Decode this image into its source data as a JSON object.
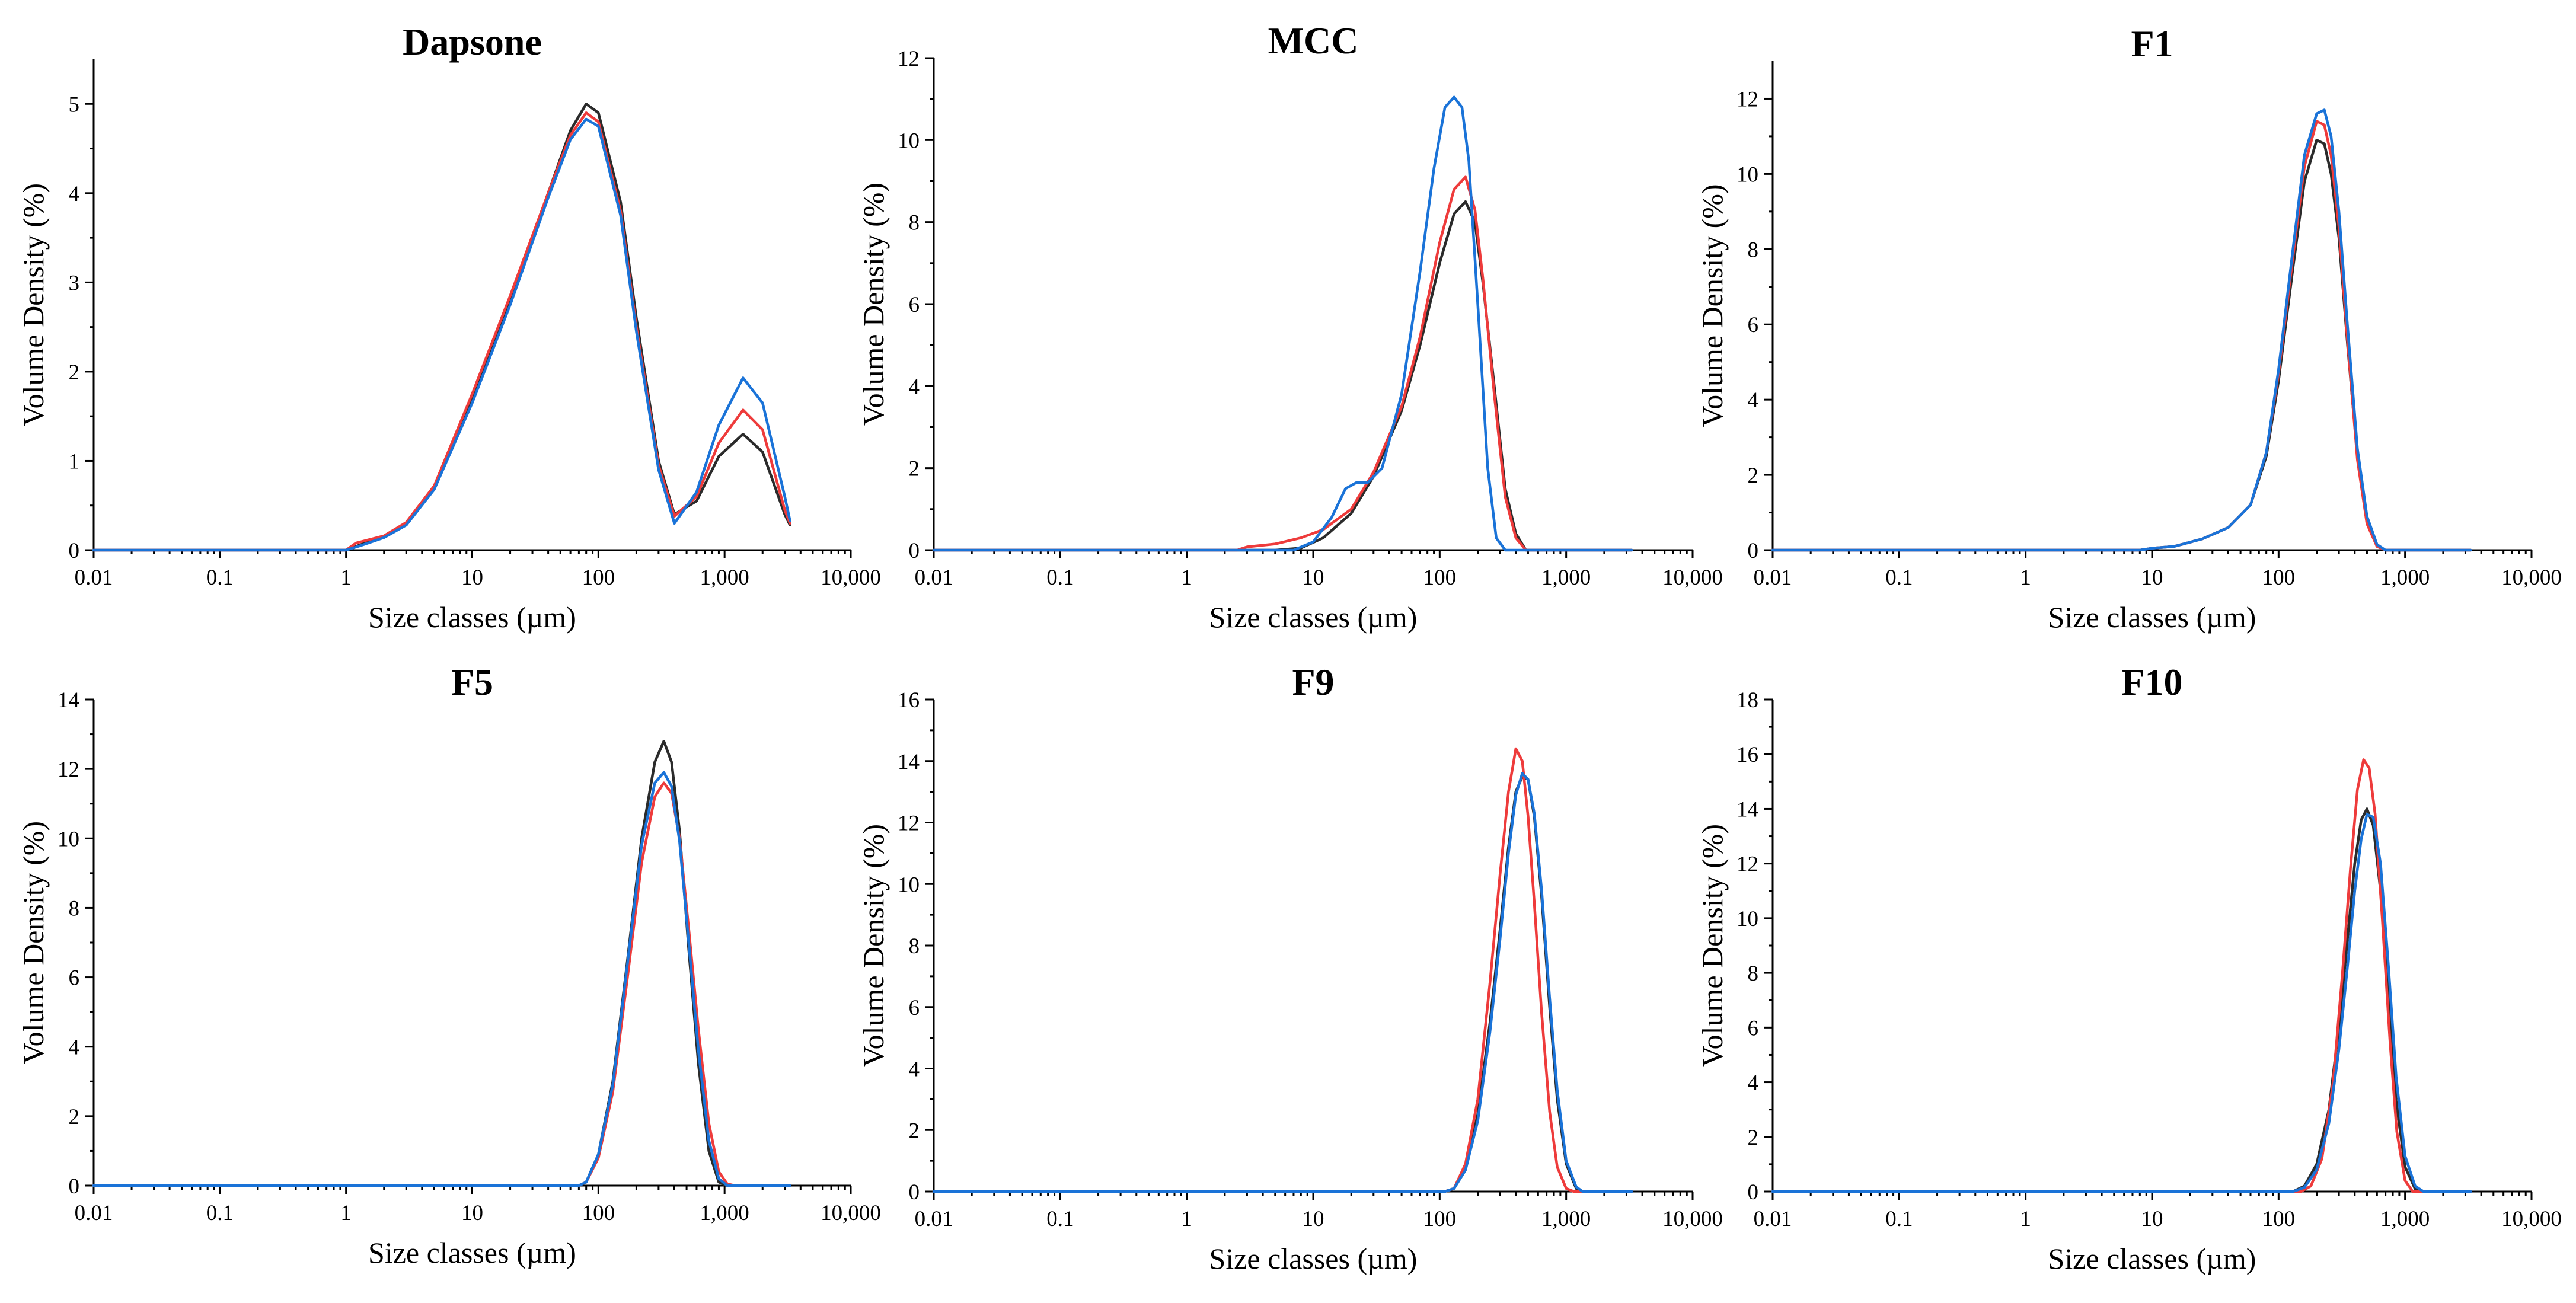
{
  "colors": {
    "black": "#2b2b2b",
    "red": "#ee3b3b",
    "blue": "#1a73d8"
  },
  "axis": {
    "xlabel": "Size classes (µm)",
    "ylabel": "Volume Density (%)",
    "xscale": "log",
    "xlim": [
      0.01,
      10000
    ],
    "xticks": [
      0.01,
      0.1,
      1,
      10,
      100,
      1000,
      10000
    ],
    "xtick_labels": [
      "0.01",
      "0.1",
      "1",
      "10",
      "100",
      "1,000",
      "10,000"
    ]
  },
  "chart_data": [
    {
      "type": "line",
      "title": "Dapsone",
      "ylim": [
        0,
        5.5
      ],
      "yticks": [
        0,
        1,
        2,
        3,
        4,
        5
      ],
      "xlabel": "Size classes (µm)",
      "ylabel": "Volume Density (%)",
      "series": [
        {
          "name": "black",
          "color": "#2b2b2b",
          "x": [
            0.01,
            1,
            1.3,
            2,
            3,
            5,
            10,
            20,
            40,
            60,
            80,
            100,
            150,
            200,
            300,
            400,
            600,
            900,
            1400,
            2000,
            3000,
            3300
          ],
          "y": [
            0,
            0,
            0.06,
            0.15,
            0.3,
            0.7,
            1.7,
            2.8,
            4.0,
            4.7,
            5.0,
            4.9,
            3.9,
            2.6,
            1.0,
            0.4,
            0.55,
            1.05,
            1.3,
            1.1,
            0.4,
            0.28
          ]
        },
        {
          "name": "red",
          "color": "#ee3b3b",
          "x": [
            0.01,
            1,
            1.2,
            2,
            3,
            5,
            10,
            20,
            40,
            60,
            80,
            100,
            150,
            200,
            300,
            400,
            600,
            900,
            1400,
            2000,
            3000,
            3300
          ],
          "y": [
            0,
            0,
            0.08,
            0.16,
            0.31,
            0.72,
            1.75,
            2.85,
            4.0,
            4.65,
            4.9,
            4.8,
            3.8,
            2.5,
            0.95,
            0.38,
            0.6,
            1.2,
            1.57,
            1.35,
            0.45,
            0.3
          ]
        },
        {
          "name": "blue",
          "color": "#1a73d8",
          "x": [
            0.01,
            1,
            1.3,
            2,
            3,
            5,
            10,
            20,
            40,
            60,
            80,
            100,
            150,
            200,
            300,
            400,
            600,
            900,
            1400,
            2000,
            3000,
            3300
          ],
          "y": [
            0,
            0,
            0.05,
            0.14,
            0.28,
            0.68,
            1.65,
            2.75,
            3.95,
            4.6,
            4.83,
            4.75,
            3.75,
            2.45,
            0.9,
            0.3,
            0.65,
            1.4,
            1.93,
            1.65,
            0.6,
            0.33
          ]
        }
      ]
    },
    {
      "type": "line",
      "title": "MCC",
      "ylim": [
        0,
        12
      ],
      "yticks": [
        0,
        2,
        4,
        6,
        8,
        10,
        12
      ],
      "xlabel": "Size classes (µm)",
      "ylabel": "Volume Density (%)",
      "series": [
        {
          "name": "black",
          "color": "#2b2b2b",
          "x": [
            0.01,
            5,
            8,
            12,
            20,
            30,
            50,
            70,
            100,
            130,
            160,
            190,
            220,
            270,
            330,
            400,
            480,
            3300
          ],
          "y": [
            0,
            0,
            0.05,
            0.3,
            0.9,
            1.8,
            3.4,
            5.0,
            7.0,
            8.2,
            8.5,
            8.0,
            6.5,
            4.0,
            1.5,
            0.4,
            0,
            0
          ]
        },
        {
          "name": "red",
          "color": "#ee3b3b",
          "x": [
            0.01,
            2.5,
            3,
            5,
            8,
            12,
            20,
            30,
            50,
            70,
            100,
            130,
            160,
            190,
            220,
            270,
            330,
            400,
            480,
            3300
          ],
          "y": [
            0,
            0,
            0.08,
            0.15,
            0.3,
            0.5,
            1.0,
            1.9,
            3.5,
            5.2,
            7.5,
            8.8,
            9.1,
            8.3,
            6.6,
            3.8,
            1.3,
            0.3,
            0,
            0
          ]
        },
        {
          "name": "blue",
          "color": "#1a73d8",
          "x": [
            0.01,
            7,
            10,
            14,
            18,
            22,
            27,
            35,
            50,
            70,
            90,
            110,
            130,
            150,
            170,
            200,
            240,
            280,
            330,
            3300
          ],
          "y": [
            0,
            0,
            0.2,
            0.8,
            1.5,
            1.65,
            1.65,
            2.0,
            3.8,
            6.8,
            9.3,
            10.8,
            11.05,
            10.8,
            9.5,
            6.0,
            2.0,
            0.3,
            0,
            0
          ]
        }
      ]
    },
    {
      "type": "line",
      "title": "F1",
      "ylim": [
        0,
        13
      ],
      "yticks": [
        0,
        2,
        4,
        6,
        8,
        10,
        12
      ],
      "xlabel": "Size classes (µm)",
      "ylabel": "Volume Density (%)",
      "series": [
        {
          "name": "black",
          "color": "#2b2b2b",
          "x": [
            0.01,
            8,
            10,
            15,
            25,
            40,
            60,
            80,
            100,
            130,
            160,
            200,
            230,
            260,
            300,
            350,
            420,
            500,
            600,
            700,
            3300
          ],
          "y": [
            0,
            0,
            0.05,
            0.1,
            0.3,
            0.6,
            1.2,
            2.5,
            4.5,
            7.5,
            9.8,
            10.9,
            10.8,
            10.0,
            8.3,
            5.5,
            2.5,
            0.8,
            0.1,
            0,
            0
          ]
        },
        {
          "name": "red",
          "color": "#ee3b3b",
          "x": [
            0.01,
            8,
            10,
            15,
            25,
            40,
            60,
            80,
            100,
            130,
            160,
            200,
            230,
            260,
            300,
            350,
            420,
            500,
            600,
            700,
            3300
          ],
          "y": [
            0,
            0,
            0.05,
            0.1,
            0.3,
            0.6,
            1.2,
            2.6,
            4.7,
            7.8,
            10.2,
            11.4,
            11.3,
            10.5,
            8.6,
            5.6,
            2.4,
            0.7,
            0.1,
            0,
            0
          ]
        },
        {
          "name": "blue",
          "color": "#1a73d8",
          "x": [
            0.01,
            8,
            10,
            15,
            25,
            40,
            60,
            80,
            100,
            130,
            160,
            200,
            230,
            260,
            300,
            350,
            420,
            500,
            600,
            700,
            3300
          ],
          "y": [
            0,
            0,
            0.05,
            0.1,
            0.3,
            0.6,
            1.2,
            2.6,
            4.8,
            8.0,
            10.5,
            11.6,
            11.7,
            11.0,
            9.0,
            6.0,
            2.7,
            0.9,
            0.15,
            0,
            0
          ]
        }
      ]
    },
    {
      "type": "line",
      "title": "F5",
      "ylim": [
        0,
        14
      ],
      "yticks": [
        0,
        2,
        4,
        6,
        8,
        10,
        12,
        14
      ],
      "xlabel": "Size classes (µm)",
      "ylabel": "Volume Density (%)",
      "series": [
        {
          "name": "black",
          "color": "#2b2b2b",
          "x": [
            0.01,
            70,
            80,
            100,
            130,
            170,
            220,
            280,
            330,
            380,
            440,
            520,
            620,
            750,
            900,
            1050,
            3300
          ],
          "y": [
            0,
            0,
            0.1,
            0.9,
            3.0,
            6.5,
            10.0,
            12.2,
            12.8,
            12.2,
            10.2,
            6.8,
            3.5,
            1.0,
            0.1,
            0,
            0
          ]
        },
        {
          "name": "red",
          "color": "#ee3b3b",
          "x": [
            0.01,
            70,
            80,
            100,
            130,
            170,
            220,
            280,
            330,
            380,
            440,
            520,
            620,
            750,
            900,
            1050,
            1200,
            3300
          ],
          "y": [
            0,
            0,
            0.1,
            0.8,
            2.7,
            6.0,
            9.3,
            11.2,
            11.6,
            11.3,
            10.0,
            7.4,
            4.5,
            1.8,
            0.4,
            0.05,
            0,
            0
          ]
        },
        {
          "name": "blue",
          "color": "#1a73d8",
          "x": [
            0.01,
            70,
            80,
            100,
            130,
            170,
            220,
            280,
            330,
            380,
            440,
            520,
            620,
            750,
            900,
            1050,
            1200,
            3300
          ],
          "y": [
            0,
            0,
            0.1,
            0.9,
            2.9,
            6.4,
            9.8,
            11.6,
            11.9,
            11.5,
            9.9,
            7.0,
            3.9,
            1.3,
            0.2,
            0,
            0,
            0
          ]
        }
      ]
    },
    {
      "type": "line",
      "title": "F9",
      "ylim": [
        0,
        16
      ],
      "yticks": [
        0,
        2,
        4,
        6,
        8,
        10,
        12,
        14,
        16
      ],
      "xlabel": "Size classes (µm)",
      "ylabel": "Volume Density (%)",
      "series": [
        {
          "name": "black",
          "color": "#2b2b2b",
          "x": [
            0.01,
            110,
            130,
            160,
            200,
            250,
            300,
            350,
            400,
            450,
            500,
            560,
            640,
            740,
            850,
            1000,
            1200,
            1350,
            3300
          ],
          "y": [
            0,
            0,
            0.1,
            0.8,
            2.5,
            5.5,
            8.5,
            11.2,
            13.0,
            13.5,
            13.4,
            12.2,
            9.6,
            6.0,
            3.0,
            0.9,
            0.1,
            0,
            0
          ]
        },
        {
          "name": "red",
          "color": "#ee3b3b",
          "x": [
            0.01,
            110,
            130,
            160,
            200,
            250,
            300,
            350,
            400,
            450,
            500,
            560,
            640,
            740,
            850,
            1000,
            1150,
            1300,
            3300
          ],
          "y": [
            0,
            0,
            0.1,
            0.9,
            3.0,
            6.8,
            10.3,
            13.0,
            14.4,
            14.0,
            12.2,
            9.4,
            5.8,
            2.6,
            0.8,
            0.1,
            0,
            0,
            0
          ]
        },
        {
          "name": "blue",
          "color": "#1a73d8",
          "x": [
            0.01,
            110,
            130,
            160,
            200,
            250,
            300,
            350,
            400,
            450,
            500,
            560,
            640,
            740,
            850,
            1000,
            1200,
            1350,
            3300
          ],
          "y": [
            0,
            0,
            0.1,
            0.7,
            2.3,
            5.2,
            8.2,
            11.0,
            12.9,
            13.6,
            13.4,
            12.3,
            9.8,
            6.3,
            3.3,
            1.0,
            0.15,
            0,
            0
          ]
        }
      ]
    },
    {
      "type": "line",
      "title": "F10",
      "ylim": [
        0,
        18
      ],
      "yticks": [
        0,
        2,
        4,
        6,
        8,
        10,
        12,
        14,
        16,
        18
      ],
      "xlabel": "Size classes (µm)",
      "ylabel": "Volume Density (%)",
      "series": [
        {
          "name": "black",
          "color": "#2b2b2b",
          "x": [
            0.01,
            130,
            160,
            200,
            250,
            300,
            350,
            400,
            450,
            500,
            560,
            640,
            740,
            850,
            1000,
            1200,
            1400,
            3300
          ],
          "y": [
            0,
            0,
            0.2,
            1.0,
            3.0,
            6.0,
            9.2,
            12.0,
            13.6,
            14.0,
            13.4,
            11.0,
            7.0,
            3.3,
            0.9,
            0.1,
            0,
            0
          ]
        },
        {
          "name": "red",
          "color": "#ee3b3b",
          "x": [
            0.01,
            150,
            180,
            220,
            270,
            320,
            370,
            420,
            470,
            520,
            580,
            660,
            760,
            860,
            1000,
            1150,
            3300
          ],
          "y": [
            0,
            0,
            0.2,
            1.2,
            4.0,
            8.0,
            11.8,
            14.7,
            15.8,
            15.5,
            13.8,
            10.0,
            5.5,
            2.2,
            0.4,
            0,
            0
          ]
        },
        {
          "name": "blue",
          "color": "#1a73d8",
          "x": [
            0.01,
            130,
            160,
            200,
            250,
            300,
            350,
            400,
            450,
            500,
            560,
            640,
            740,
            850,
            1000,
            1200,
            1400,
            3300
          ],
          "y": [
            0,
            0,
            0.15,
            0.8,
            2.5,
            5.2,
            8.2,
            11.0,
            12.9,
            13.8,
            13.7,
            12.0,
            8.2,
            4.2,
            1.3,
            0.2,
            0,
            0
          ]
        }
      ]
    }
  ]
}
